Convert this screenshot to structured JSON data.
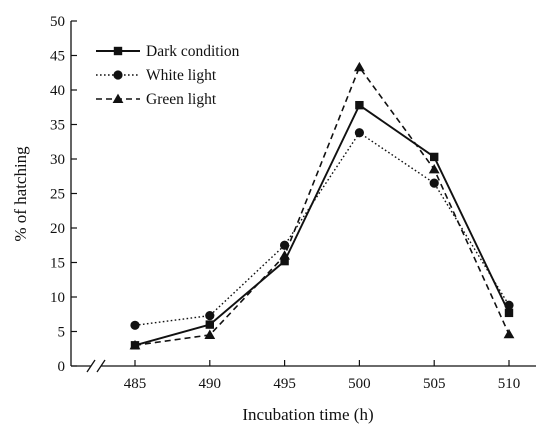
{
  "chart_data": {
    "type": "line",
    "xlabel": "Incubation time (h)",
    "ylabel": "% of hatching",
    "x": [
      485,
      490,
      495,
      500,
      505,
      510
    ],
    "xlim": [
      481,
      512
    ],
    "ylim": [
      0,
      50
    ],
    "yticks": [
      0,
      5,
      10,
      15,
      20,
      25,
      30,
      35,
      40,
      45,
      50
    ],
    "xticks": [
      485,
      490,
      495,
      500,
      505,
      510
    ],
    "x_axis_break": true,
    "grid": false,
    "legend_position": "top-left",
    "series": [
      {
        "name": "Dark condition",
        "marker": "square",
        "line_style": "solid",
        "color": "#111111",
        "values": [
          3.0,
          6.0,
          15.2,
          37.8,
          30.3,
          7.7
        ]
      },
      {
        "name": "White light",
        "marker": "circle",
        "line_style": "dotted",
        "color": "#111111",
        "values": [
          5.9,
          7.3,
          17.5,
          33.8,
          26.5,
          8.8
        ]
      },
      {
        "name": "Green light",
        "marker": "triangle",
        "line_style": "dashed",
        "color": "#111111",
        "values": [
          3.0,
          4.5,
          16.0,
          43.3,
          28.5,
          4.6
        ]
      }
    ]
  }
}
